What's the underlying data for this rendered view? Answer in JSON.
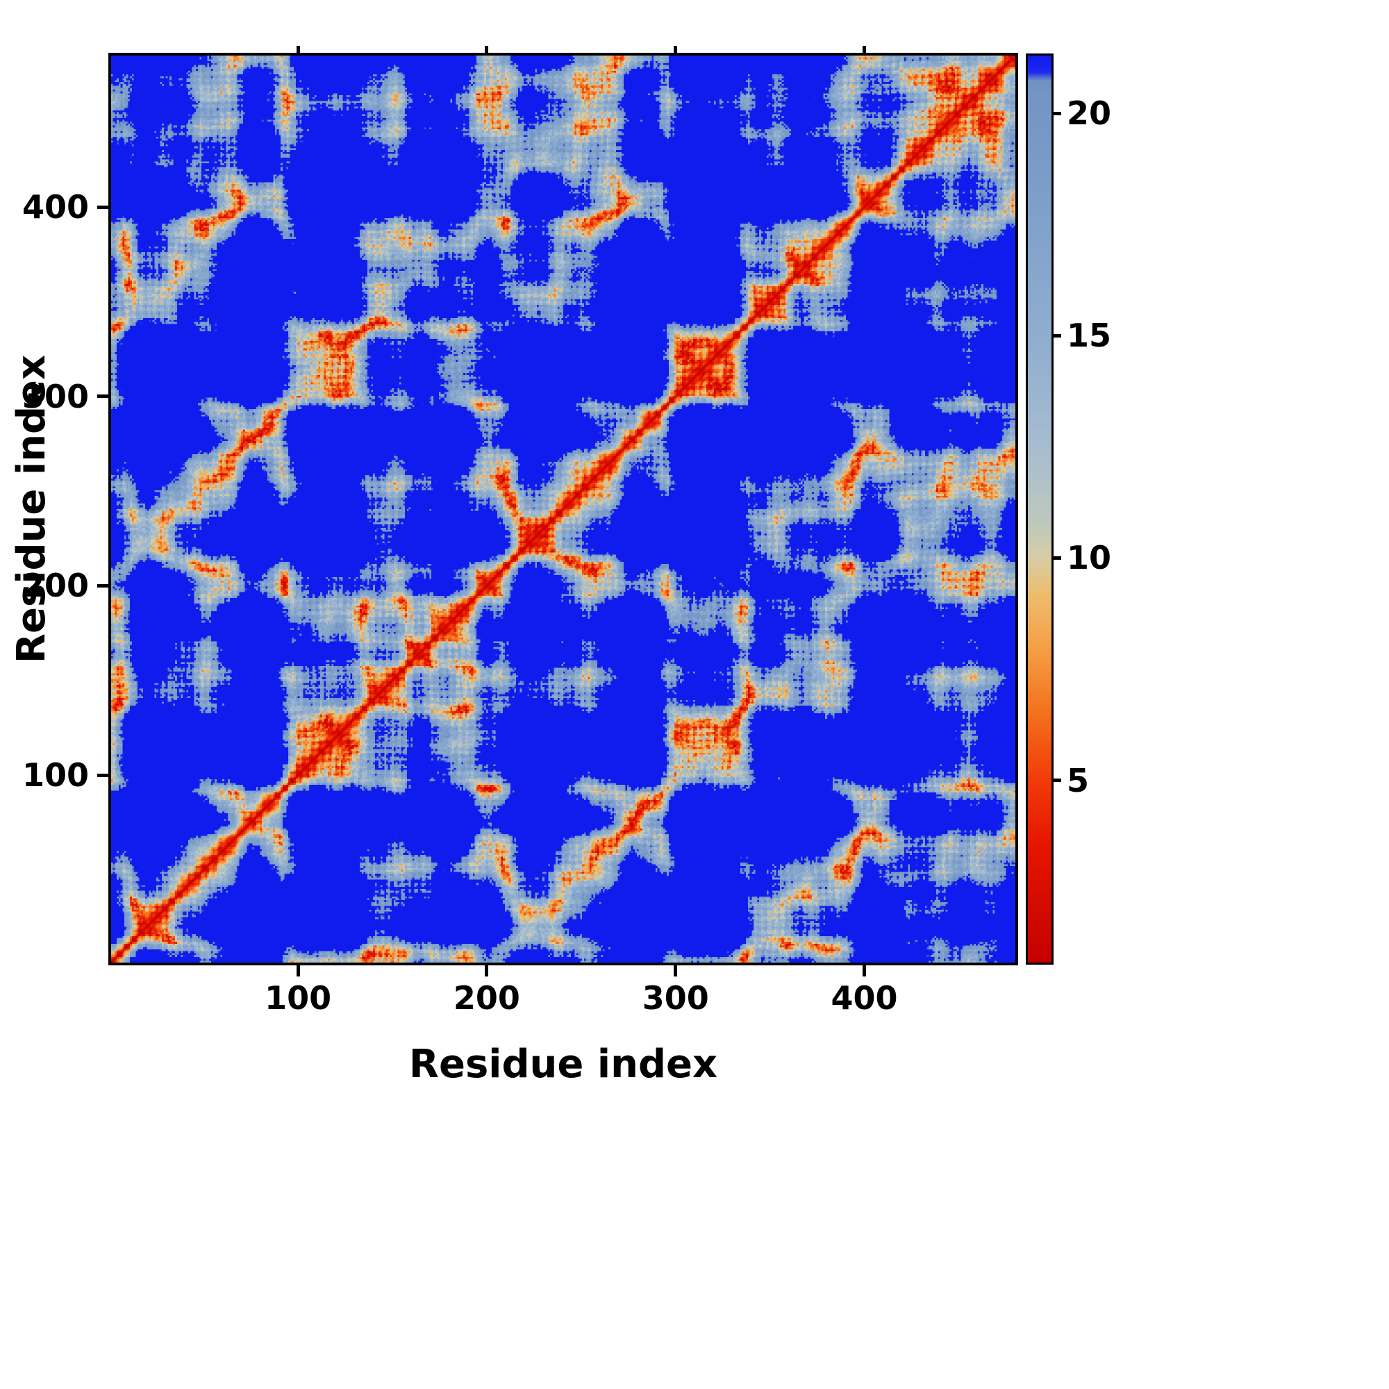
{
  "chart_data": {
    "type": "heatmap",
    "title": "",
    "xlabel": "Residue index",
    "ylabel": "Residue index",
    "x_range": [
      1,
      480
    ],
    "y_range": [
      1,
      480
    ],
    "x_ticks": [
      100,
      200,
      300,
      400
    ],
    "y_ticks": [
      100,
      200,
      300,
      400
    ],
    "grid": false,
    "legend_position": "right-vertical-colorbar",
    "description": "Residue-residue pairwise distance matrix heatmap. Red diagonal = zero/short distances, orange ladder bands = near-diagonal local contacts, pale/steel-blue blobs = intermediate distances (~10-20), saturated blue background = distances at or above the colour cap (~21). Matrix is symmetric about the main diagonal which runs from bottom-left to top-right.",
    "colorbar": {
      "orientation": "vertical",
      "ticks": [
        5,
        10,
        15,
        20
      ],
      "vmin": 0.9,
      "vmax": 21.3,
      "cap_color": "#101cee"
    },
    "colormap_stops": [
      [
        0.9,
        "#c40000"
      ],
      [
        3.5,
        "#e51500"
      ],
      [
        5.0,
        "#f13c08"
      ],
      [
        6.5,
        "#f4701c"
      ],
      [
        8.0,
        "#f5a045"
      ],
      [
        9.2,
        "#edbd6e"
      ],
      [
        10.0,
        "#d6cda6"
      ],
      [
        10.8,
        "#bdc8bd"
      ],
      [
        12.5,
        "#a6bcd0"
      ],
      [
        15.0,
        "#8fadcf"
      ],
      [
        18.0,
        "#7e9fc9"
      ],
      [
        20.4,
        "#7495c5"
      ],
      [
        20.75,
        "#7092c3"
      ],
      [
        20.95,
        "#1b27f2"
      ],
      [
        21.3,
        "#101cee"
      ]
    ],
    "generation": {
      "n_residues": 480,
      "seed": 7,
      "frequencies": [
        2.6,
        4.4,
        7.2,
        11.8,
        19.0,
        30.8
      ],
      "amplitudes": [
        11,
        8,
        6,
        4,
        2.5,
        1.5
      ],
      "drift": [
        7,
        -5,
        4
      ],
      "helix_amp": 1.7,
      "helix_period": 3.6,
      "noise": 2.0
    }
  },
  "colors": {
    "background": "#ffffff",
    "axis": "#000000",
    "text": "#000000",
    "cap_blue": "#101cee",
    "steel_blue_region": "#7d9fc8",
    "orange_band": "#f5a045",
    "diagonal_red": "#e01000"
  }
}
